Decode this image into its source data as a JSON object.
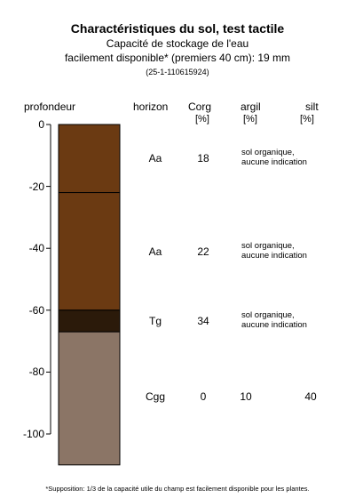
{
  "title": "Charactéristiques du sol, test tactile",
  "subtitle_line1": "Capacité de stockage de l'eau",
  "subtitle_line2": "facilement disponible* (premiers 40 cm): 19 mm",
  "sample_id": "(25-1-110615924)",
  "headers": {
    "depth": "profondeur",
    "horizon": "horizon",
    "corg": "Corg",
    "corg_unit": "[%]",
    "clay": "argil",
    "clay_unit": "[%]",
    "silt": "silt",
    "silt_unit": "[%]"
  },
  "chart_data": {
    "type": "soil-profile",
    "y_ticks": [
      "0",
      "-20",
      "-40",
      "-60",
      "-80",
      "-100"
    ],
    "ylim": [
      -110,
      0
    ],
    "layers": [
      {
        "top": 0,
        "bottom": -22,
        "color": "#6b3a12"
      },
      {
        "top": -22,
        "bottom": -60,
        "color": "#6b3a12"
      },
      {
        "top": -60,
        "bottom": -67,
        "color": "#2b1a0a"
      },
      {
        "top": -67,
        "bottom": -110,
        "color": "#8b7566"
      }
    ],
    "rows": [
      {
        "depth": -11,
        "horizon": "Aa",
        "corg": "18",
        "note1": "sol organique,",
        "note2": "aucune indication",
        "clay": "",
        "silt": ""
      },
      {
        "depth": -41,
        "horizon": "Aa",
        "corg": "22",
        "note1": "sol organique,",
        "note2": "aucune indication",
        "clay": "",
        "silt": ""
      },
      {
        "depth": -63.5,
        "horizon": "Tg",
        "corg": "34",
        "note1": "sol organique,",
        "note2": "aucune indication",
        "clay": "",
        "silt": ""
      },
      {
        "depth": -88,
        "horizon": "Cgg",
        "corg": "0",
        "note1": "",
        "note2": "",
        "clay": "10",
        "silt": "40"
      }
    ]
  },
  "footnote": "*Supposition: 1/3 de la capacité utile du champ est facilement disponible pour les plantes."
}
